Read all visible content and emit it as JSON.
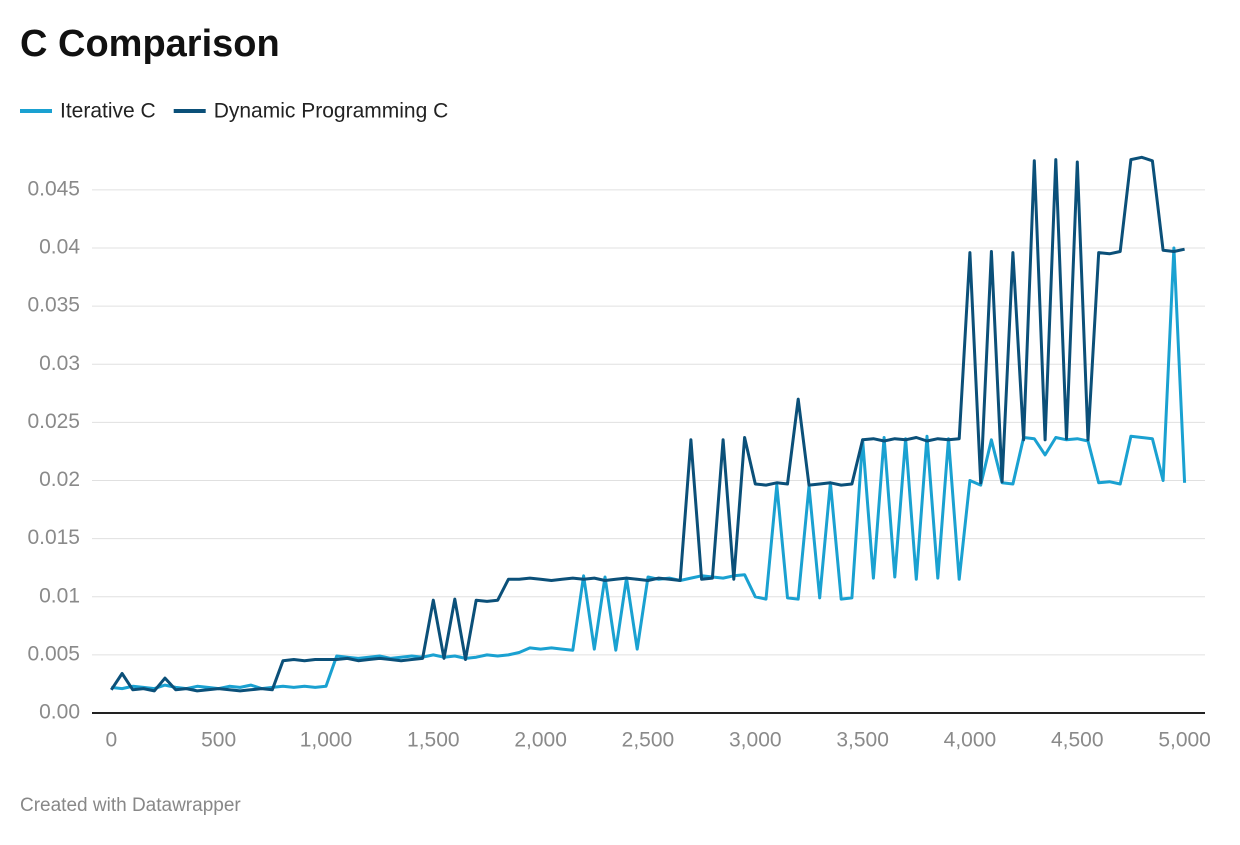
{
  "chart_data": {
    "type": "line",
    "title": "C Comparison",
    "footer": "Created with Datawrapper",
    "x": [
      0,
      50,
      100,
      150,
      200,
      250,
      300,
      350,
      400,
      450,
      500,
      550,
      600,
      650,
      700,
      750,
      800,
      850,
      900,
      950,
      1000,
      1050,
      1100,
      1150,
      1200,
      1250,
      1300,
      1350,
      1400,
      1450,
      1500,
      1550,
      1600,
      1650,
      1700,
      1750,
      1800,
      1850,
      1900,
      1950,
      2000,
      2050,
      2100,
      2150,
      2200,
      2250,
      2300,
      2350,
      2400,
      2450,
      2500,
      2550,
      2600,
      2650,
      2700,
      2750,
      2800,
      2850,
      2900,
      2950,
      3000,
      3050,
      3100,
      3150,
      3200,
      3250,
      3300,
      3350,
      3400,
      3450,
      3500,
      3550,
      3600,
      3650,
      3700,
      3750,
      3800,
      3850,
      3900,
      3950,
      4000,
      4050,
      4100,
      4150,
      4200,
      4250,
      4300,
      4350,
      4400,
      4450,
      4500,
      4550,
      4600,
      4650,
      4700,
      4750,
      4800,
      4850,
      4900,
      4950,
      5000
    ],
    "series": [
      {
        "name": "Iterative C",
        "color": "#1aa1d1",
        "values": [
          0.0022,
          0.0021,
          0.0023,
          0.0022,
          0.0021,
          0.0024,
          0.0022,
          0.0021,
          0.0023,
          0.0022,
          0.0021,
          0.0023,
          0.0022,
          0.0024,
          0.0021,
          0.0022,
          0.0023,
          0.0022,
          0.0023,
          0.0022,
          0.0023,
          0.0049,
          0.0048,
          0.0047,
          0.0048,
          0.0049,
          0.0047,
          0.0048,
          0.0049,
          0.0048,
          0.005,
          0.0048,
          0.0049,
          0.0047,
          0.0048,
          0.005,
          0.0049,
          0.005,
          0.0052,
          0.0056,
          0.0055,
          0.0056,
          0.0055,
          0.0054,
          0.0118,
          0.0055,
          0.0117,
          0.0054,
          0.0116,
          0.0055,
          0.0117,
          0.0115,
          0.0116,
          0.0114,
          0.0116,
          0.0118,
          0.0117,
          0.0116,
          0.0118,
          0.0119,
          0.01,
          0.0098,
          0.0196,
          0.0099,
          0.0098,
          0.0195,
          0.0099,
          0.0198,
          0.0098,
          0.0099,
          0.0235,
          0.0116,
          0.0237,
          0.0117,
          0.0236,
          0.0115,
          0.0238,
          0.0116,
          0.0236,
          0.0115,
          0.02,
          0.0196,
          0.0235,
          0.0198,
          0.0197,
          0.0237,
          0.0236,
          0.0222,
          0.0237,
          0.0235,
          0.0236,
          0.0234,
          0.0198,
          0.0199,
          0.0197,
          0.0238,
          0.0237,
          0.0236,
          0.02,
          0.04,
          0.0198
        ]
      },
      {
        "name": "Dynamic Programming C",
        "color": "#0b5079",
        "values": [
          0.002,
          0.0034,
          0.002,
          0.0021,
          0.0019,
          0.003,
          0.002,
          0.0021,
          0.0019,
          0.002,
          0.0021,
          0.002,
          0.0019,
          0.002,
          0.0021,
          0.002,
          0.0045,
          0.0046,
          0.0045,
          0.0046,
          0.0046,
          0.0046,
          0.0047,
          0.0045,
          0.0046,
          0.0047,
          0.0046,
          0.0045,
          0.0046,
          0.0047,
          0.0097,
          0.0047,
          0.0098,
          0.0046,
          0.0097,
          0.0096,
          0.0097,
          0.0115,
          0.0115,
          0.0116,
          0.0115,
          0.0114,
          0.0115,
          0.0116,
          0.0115,
          0.0116,
          0.0114,
          0.0115,
          0.0116,
          0.0115,
          0.0114,
          0.0116,
          0.0115,
          0.0114,
          0.0235,
          0.0115,
          0.0116,
          0.0235,
          0.0115,
          0.0237,
          0.0197,
          0.0196,
          0.0198,
          0.0197,
          0.027,
          0.0196,
          0.0197,
          0.0198,
          0.0196,
          0.0197,
          0.0235,
          0.0236,
          0.0234,
          0.0236,
          0.0235,
          0.0237,
          0.0234,
          0.0236,
          0.0235,
          0.0236,
          0.0396,
          0.0198,
          0.0397,
          0.0199,
          0.0396,
          0.0235,
          0.0475,
          0.0235,
          0.0476,
          0.0236,
          0.0474,
          0.0235,
          0.0396,
          0.0395,
          0.0397,
          0.0476,
          0.0478,
          0.0475,
          0.0398,
          0.0397,
          0.0399
        ]
      }
    ],
    "xlim": [
      -90,
      5095
    ],
    "ylim": [
      0,
      0.048
    ],
    "xticks": [
      0,
      500,
      {
        "value": 1000,
        "label": "1,000"
      },
      {
        "value": 1500,
        "label": "1,500"
      },
      {
        "value": 2000,
        "label": "2,000"
      },
      {
        "value": 2500,
        "label": "2,500"
      },
      {
        "value": 3000,
        "label": "3,000"
      },
      {
        "value": 3500,
        "label": "3,500"
      },
      {
        "value": 4000,
        "label": "4,000"
      },
      {
        "value": 4500,
        "label": "4,500"
      },
      {
        "value": 5000,
        "label": "5,000"
      }
    ],
    "yticks": [
      {
        "value": 0,
        "label": "0.00"
      },
      0.005,
      0.01,
      0.015,
      0.02,
      0.025,
      0.03,
      0.035,
      0.04,
      0.045
    ],
    "grid": true
  }
}
